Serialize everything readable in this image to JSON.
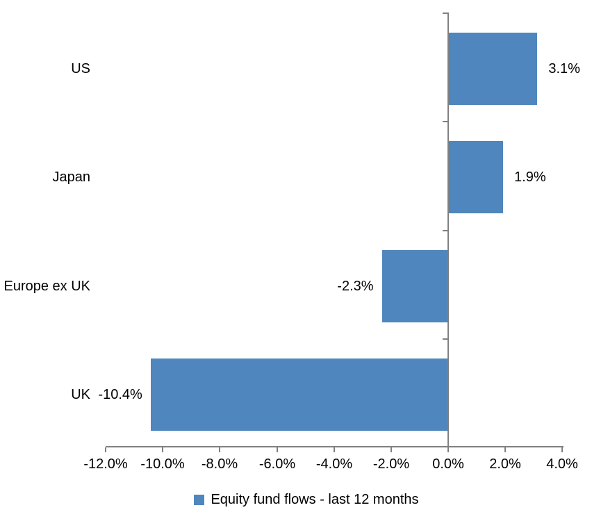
{
  "chart_data": {
    "type": "bar",
    "orientation": "horizontal",
    "title": "",
    "xlabel": "",
    "ylabel": "",
    "categories": [
      "US",
      "Japan",
      "Europe ex UK",
      "UK"
    ],
    "series": [
      {
        "name": "Equity fund flows - last 12 months",
        "values": [
          3.1,
          1.9,
          -2.3,
          -10.4
        ],
        "data_labels": [
          "3.1%",
          "1.9%",
          "-2.3%",
          "-10.4%"
        ]
      }
    ],
    "xlim": [
      -12.0,
      4.0
    ],
    "x_ticks": [
      -12,
      -10,
      -8,
      -6,
      -4,
      -2,
      0,
      2,
      4
    ],
    "x_tick_labels": [
      "-12.0%",
      "-10.0%",
      "-8.0%",
      "-6.0%",
      "-4.0%",
      "-2.0%",
      "0.0%",
      "2.0%",
      "4.0%"
    ],
    "grid": false,
    "legend": {
      "position": "bottom",
      "label": "Equity fund flows - last 12 months"
    },
    "colors": {
      "bar": "#4E86BD",
      "axis": "#808080",
      "text": "#000000",
      "background": "#FFFFFF"
    }
  }
}
